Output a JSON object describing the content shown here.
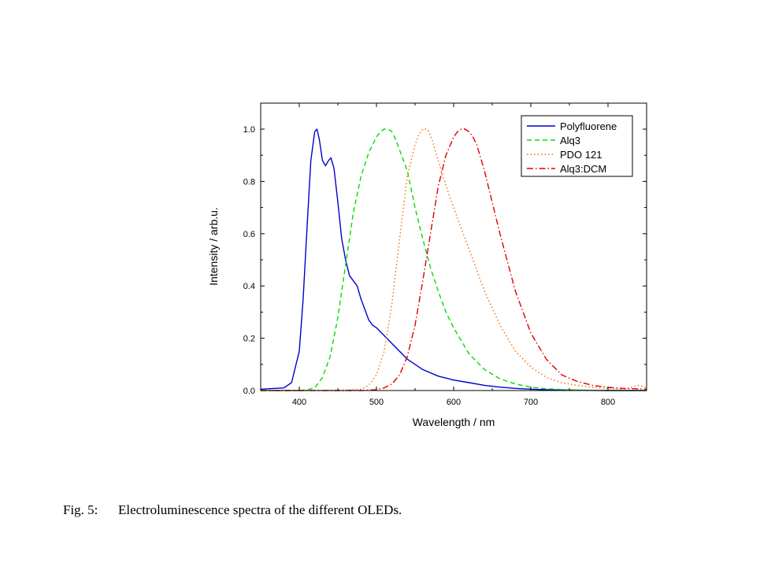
{
  "caption": {
    "label": "Fig. 5:",
    "text": "Electroluminescence spectra of the different OLEDs."
  },
  "chart_data": {
    "type": "line",
    "xlabel": "Wavelength / nm",
    "ylabel": "Intensity / arb.u.",
    "xlim": [
      350,
      850
    ],
    "ylim": [
      0,
      1.0
    ],
    "xticks": [
      400,
      500,
      600,
      700,
      800
    ],
    "yticks": [
      0.0,
      0.2,
      0.4,
      0.6,
      0.8,
      1.0
    ],
    "xtick_labels": [
      "400",
      "500",
      "600",
      "700",
      "800"
    ],
    "ytick_labels": [
      "0.0",
      "0.2",
      "0.4",
      "0.6",
      "0.8",
      "1.0"
    ],
    "grid": false,
    "legend_position": "top-right",
    "series": [
      {
        "name": "Polyfluorene",
        "color": "#0000cc",
        "dash": "solid",
        "x": [
          350,
          380,
          390,
          400,
          405,
          410,
          415,
          420,
          423,
          426,
          430,
          434,
          438,
          441,
          445,
          450,
          455,
          460,
          465,
          470,
          475,
          480,
          485,
          490,
          495,
          500,
          510,
          520,
          530,
          540,
          560,
          580,
          600,
          620,
          640,
          660,
          680,
          700,
          720,
          740,
          760,
          800,
          850
        ],
        "y": [
          0.005,
          0.01,
          0.03,
          0.15,
          0.35,
          0.62,
          0.88,
          0.99,
          1.0,
          0.96,
          0.88,
          0.86,
          0.88,
          0.89,
          0.85,
          0.72,
          0.58,
          0.5,
          0.44,
          0.42,
          0.4,
          0.35,
          0.31,
          0.27,
          0.25,
          0.24,
          0.21,
          0.18,
          0.15,
          0.12,
          0.08,
          0.055,
          0.04,
          0.03,
          0.02,
          0.013,
          0.008,
          0.005,
          0.003,
          0.002,
          0.001,
          0.0,
          0.0
        ]
      },
      {
        "name": "Alq3",
        "color": "#00dd00",
        "dash": "dashed",
        "x": [
          350,
          400,
          410,
          420,
          430,
          440,
          450,
          460,
          470,
          480,
          490,
          500,
          505,
          510,
          515,
          520,
          525,
          530,
          540,
          550,
          560,
          570,
          580,
          590,
          600,
          620,
          640,
          660,
          680,
          700,
          720,
          740,
          760,
          800,
          850
        ],
        "y": [
          0.0,
          0.0,
          0.003,
          0.01,
          0.05,
          0.13,
          0.28,
          0.48,
          0.68,
          0.82,
          0.91,
          0.97,
          0.99,
          1.0,
          1.0,
          0.99,
          0.96,
          0.92,
          0.84,
          0.7,
          0.58,
          0.47,
          0.38,
          0.3,
          0.24,
          0.14,
          0.08,
          0.045,
          0.025,
          0.013,
          0.007,
          0.004,
          0.002,
          0.0,
          0.0
        ]
      },
      {
        "name": "PDO 121",
        "color": "#ff6600",
        "dash": "dotted",
        "x": [
          350,
          450,
          480,
          490,
          500,
          510,
          520,
          530,
          540,
          550,
          555,
          560,
          565,
          568,
          572,
          578,
          585,
          595,
          605,
          615,
          625,
          640,
          660,
          680,
          700,
          720,
          740,
          760,
          780,
          800,
          820,
          840,
          850
        ],
        "y": [
          0.0,
          0.0,
          0.005,
          0.02,
          0.06,
          0.15,
          0.33,
          0.58,
          0.82,
          0.94,
          0.98,
          1.0,
          1.0,
          0.99,
          0.96,
          0.9,
          0.83,
          0.74,
          0.66,
          0.58,
          0.5,
          0.38,
          0.25,
          0.15,
          0.09,
          0.05,
          0.03,
          0.02,
          0.012,
          0.008,
          0.005,
          0.02,
          0.01
        ]
      },
      {
        "name": "Alq3:DCM",
        "color": "#dd0000",
        "dash": "dashdot",
        "x": [
          350,
          480,
          500,
          510,
          520,
          530,
          540,
          550,
          560,
          570,
          580,
          590,
          600,
          605,
          610,
          615,
          620,
          625,
          630,
          640,
          650,
          660,
          670,
          680,
          690,
          700,
          720,
          740,
          760,
          780,
          800,
          820,
          850
        ],
        "y": [
          0.0,
          0.0,
          0.003,
          0.01,
          0.025,
          0.06,
          0.13,
          0.25,
          0.42,
          0.6,
          0.78,
          0.9,
          0.97,
          0.99,
          1.0,
          1.0,
          0.99,
          0.97,
          0.94,
          0.84,
          0.72,
          0.6,
          0.49,
          0.38,
          0.3,
          0.22,
          0.12,
          0.06,
          0.035,
          0.02,
          0.012,
          0.008,
          0.005
        ]
      }
    ]
  }
}
